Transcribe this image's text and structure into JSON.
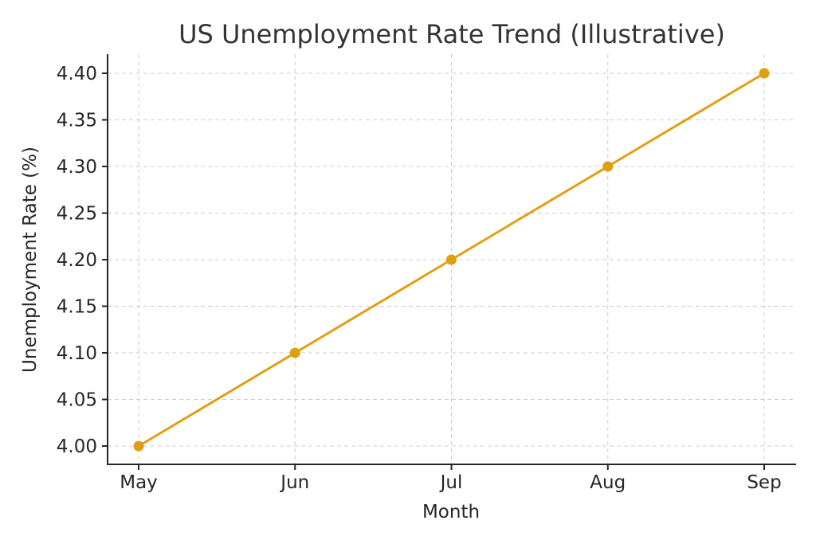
{
  "chart_data": {
    "type": "line",
    "title": "US Unemployment Rate Trend (Illustrative)",
    "xlabel": "Month",
    "ylabel": "Unemployment Rate (%)",
    "categories": [
      "May",
      "Jun",
      "Jul",
      "Aug",
      "Sep"
    ],
    "series": [
      {
        "name": "Unemployment Rate",
        "values": [
          4.0,
          4.1,
          4.2,
          4.3,
          4.4
        ],
        "color": "#e09f13",
        "marker": "circle"
      }
    ],
    "yticks": [
      "4.00",
      "4.05",
      "4.10",
      "4.15",
      "4.20",
      "4.25",
      "4.30",
      "4.35",
      "4.40"
    ],
    "ylim": [
      3.98,
      4.42
    ],
    "grid": true,
    "legend": false
  }
}
